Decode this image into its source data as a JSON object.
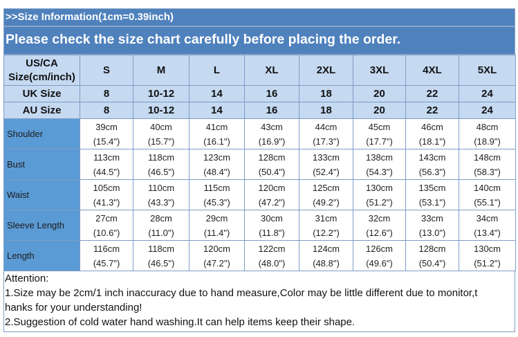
{
  "banner": {
    "line1": ">>Size Information(1cm=0.39inch)",
    "line2": "Please check the size chart carefully before placing the order."
  },
  "header": {
    "corner": "US/CA Size(cm/inch)",
    "sizes": [
      "S",
      "M",
      "L",
      "XL",
      "2XL",
      "3XL",
      "4XL",
      "5XL"
    ]
  },
  "uk": {
    "label": "UK Size",
    "values": [
      "8",
      "10-12",
      "14",
      "16",
      "18",
      "20",
      "22",
      "24"
    ]
  },
  "au": {
    "label": "AU Size",
    "values": [
      "8",
      "10-12",
      "14",
      "16",
      "18",
      "20",
      "22",
      "24"
    ]
  },
  "rows": [
    {
      "label": "Shoulder",
      "cm": [
        "39cm",
        "40cm",
        "41cm",
        "43cm",
        "44cm",
        "45cm",
        "46cm",
        "48cm"
      ],
      "in": [
        "(15.4\")",
        "(15.7\")",
        "(16.1\")",
        "(16.9\")",
        "(17.3\")",
        "(17.7\")",
        "(18.1\")",
        "(18.9\")"
      ]
    },
    {
      "label": "Bust",
      "cm": [
        "113cm",
        "118cm",
        "123cm",
        "128cm",
        "133cm",
        "138cm",
        "143cm",
        "148cm"
      ],
      "in": [
        "(44.5\")",
        "(46.5\")",
        "(48.4\")",
        "(50.4\")",
        "(52.4\")",
        "(54.3\")",
        "(56.3\")",
        "(58.3\")"
      ]
    },
    {
      "label": "Waist",
      "cm": [
        "105cm",
        "110cm",
        "115cm",
        "120cm",
        "125cm",
        "130cm",
        "135cm",
        "140cm"
      ],
      "in": [
        "(41.3\")",
        "(43.3\")",
        "(45.3\")",
        "(47.2\")",
        "(49.2\")",
        "(51.2\")",
        "(53.1\")",
        "(55.1\")"
      ]
    },
    {
      "label": "Sleeve Length",
      "cm": [
        "27cm",
        "28cm",
        "29cm",
        "30cm",
        "31cm",
        "32cm",
        "33cm",
        "34cm"
      ],
      "in": [
        "(10.6\")",
        "(11.0\")",
        "(11.4\")",
        "(11.8\")",
        "(12.2\")",
        "(12.6\")",
        "(13.0\")",
        "(13.4\")"
      ]
    },
    {
      "label": "Length",
      "cm": [
        "116cm",
        "118cm",
        "120cm",
        "122cm",
        "124cm",
        "126cm",
        "128cm",
        "130cm"
      ],
      "in": [
        "(45.7\")",
        "(46.5\")",
        "(47.2\")",
        "(48.0\")",
        "(48.8\")",
        "(49.6\")",
        "(50.4\")",
        "(51.2\")"
      ]
    }
  ],
  "attention": {
    "title": "Attention:",
    "lines": [
      "1.Size may be 2cm/1  inch inaccuracy due to hand measure,Color may be little different due to monitor,t",
      "hanks for your understanding!",
      "2.Suggestion of cold water hand washing.It can help items keep their shape."
    ]
  },
  "colors": {
    "banner": "#4f81bd",
    "header_cell": "#c5d9f1",
    "row_label": "#5b9bd5"
  }
}
